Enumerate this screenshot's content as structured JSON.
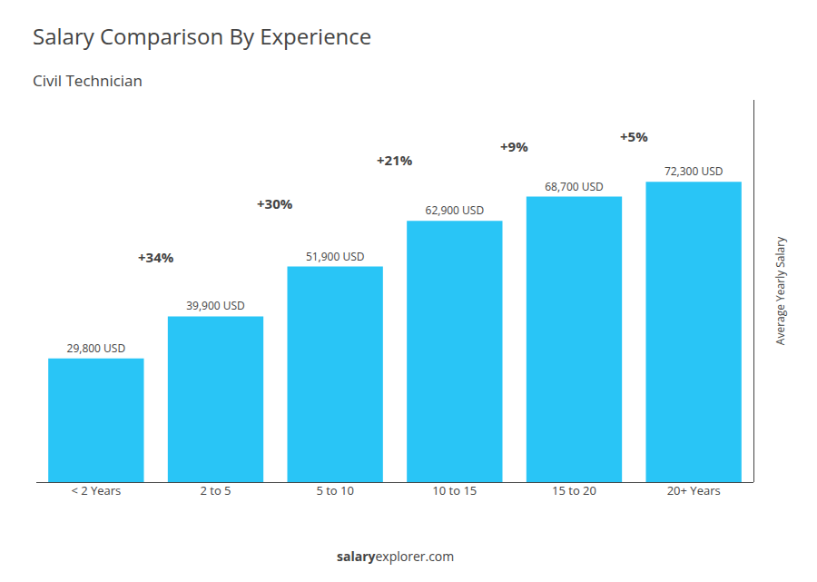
{
  "chart_data": {
    "type": "bar",
    "title": "Salary Comparison By Experience",
    "subtitle": "Civil Technician",
    "ylabel": "Average Yearly Salary",
    "categories": [
      "< 2 Years",
      "2 to 5",
      "5 to 10",
      "10 to 15",
      "15 to 20",
      "20+ Years"
    ],
    "values": [
      29800,
      39900,
      51900,
      62900,
      68700,
      72300
    ],
    "value_labels": [
      "29,800 USD",
      "39,900 USD",
      "51,900 USD",
      "62,900 USD",
      "68,700 USD",
      "72,300 USD"
    ],
    "data_labels": true,
    "color": "#29c5f6",
    "annotations": [
      "+34%",
      "+30%",
      "+21%",
      "+9%",
      "+5%"
    ],
    "footer": [
      "salary",
      "explorer",
      ".com"
    ],
    "ylim": [
      0,
      92000
    ],
    "grid": false,
    "tick_labels": "x"
  }
}
